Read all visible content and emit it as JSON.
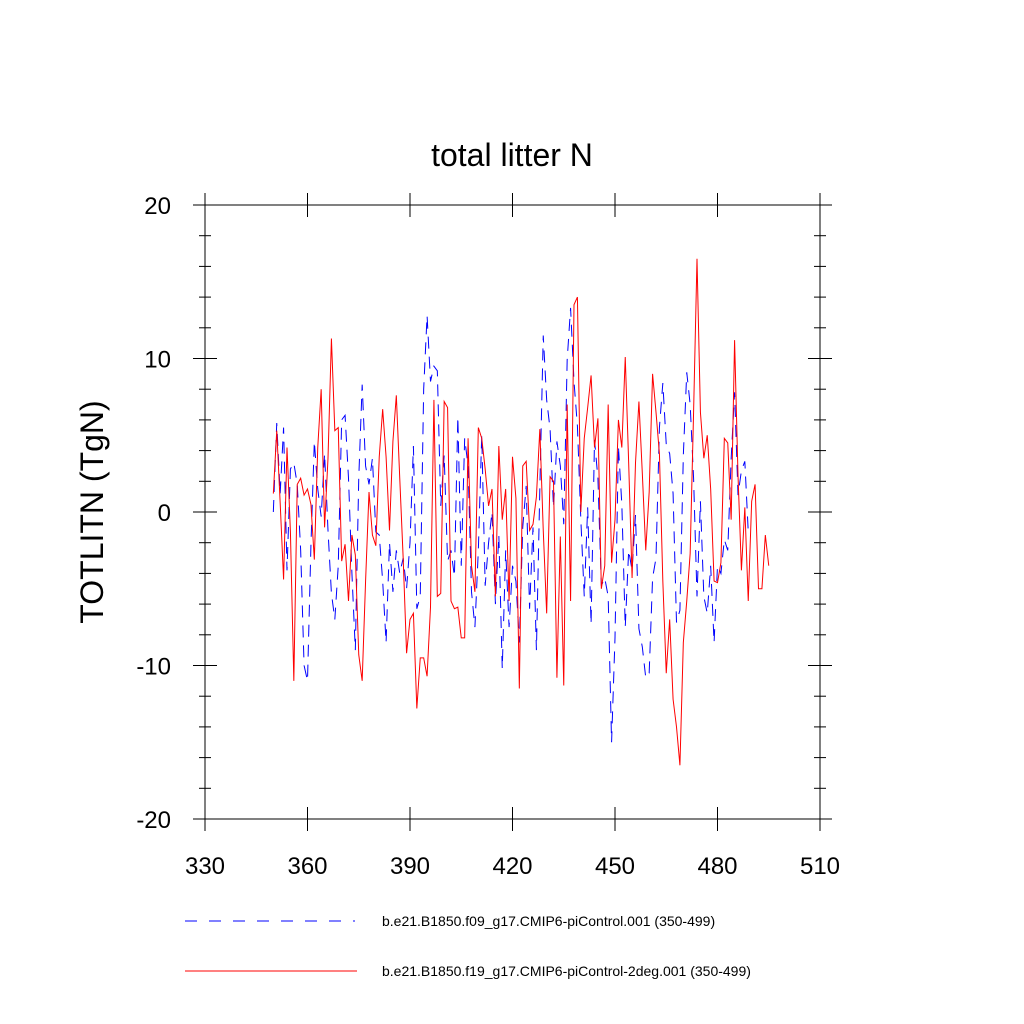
{
  "chart_data": {
    "type": "line",
    "title": "total litter N",
    "xlabel": "",
    "ylabel": "TOTLITN  (TgN)",
    "xlim": [
      330,
      510
    ],
    "ylim": [
      -20,
      20
    ],
    "x_ticks": [
      330,
      360,
      390,
      420,
      450,
      480,
      510
    ],
    "y_ticks": [
      -20,
      -10,
      0,
      10,
      20
    ],
    "x_tick_labels": [
      "330",
      "360",
      "390",
      "420",
      "450",
      "480",
      "510"
    ],
    "y_tick_labels": [
      "-20",
      "-10",
      "0",
      "10",
      "20"
    ],
    "legend_position": "bottom",
    "series": [
      {
        "name": "b.e21.B1850.f09_g17.CMIP6-piControl.001 (350-499)",
        "color": "#0000ff",
        "style": "dashed",
        "x_start": 350,
        "values": [
          0,
          5.8,
          1.2,
          5.5,
          -3.8,
          2.8,
          3.2,
          1.8,
          -2.5,
          -10,
          -11,
          -2.2,
          4.6,
          1.5,
          -0.3,
          3.8,
          -1.2,
          -5.3,
          -7,
          -3.5,
          6,
          6.3,
          2.2,
          -4,
          -9,
          2.2,
          8.3,
          3,
          1.8,
          3.5,
          -1.3,
          -1.5,
          -4.5,
          -8.5,
          -2,
          -5.2,
          -2.5,
          -4,
          -3,
          -5,
          -2,
          4.3,
          -6.3,
          -5.5,
          8,
          12.8,
          8.5,
          9.5,
          9.2,
          0.4,
          3.7,
          -3.2,
          -2.5,
          -4.2,
          6.2,
          -3.5,
          4.8,
          3,
          -5.2,
          -7.5,
          -2.5,
          5,
          -4.8,
          -2,
          0,
          -6,
          -1.5,
          -10.2,
          -2.5,
          -7.5,
          -3.5,
          -4.5,
          -8.5,
          -1,
          1.7,
          -6.3,
          -1,
          -9,
          1.5,
          11.5,
          7.3,
          5.4,
          0.3,
          4.6,
          3,
          -0.8,
          9.9,
          13.3,
          8.5,
          5.6,
          -0.5,
          -5.5,
          0.3,
          -7.3,
          4.7,
          2.2,
          -4.8,
          -4.3,
          -5.5,
          -15,
          -8.2,
          4.3,
          0.5,
          -7.5,
          -2.5,
          -3.8,
          -0.2,
          -7.6,
          -8.8,
          -10.8,
          -10.5,
          -4.3,
          -3,
          5.5,
          8.4,
          4.4,
          3.8,
          1.2,
          -7.2,
          -6.4,
          3.7,
          9.1,
          7,
          2.2,
          -5.5,
          0.7,
          -5.5,
          -6.6,
          -3.5,
          -8.5,
          -3.5,
          -4,
          -1.8,
          -2.5,
          3.5,
          7.8,
          1.1,
          2.7,
          3.3,
          -1.3
        ],
        "x_end": 499
      },
      {
        "name": "b.e21.B1850.f19_g17.CMIP6-piControl-2deg.001 (350-499)",
        "color": "#ff0000",
        "style": "solid",
        "x_start": 350,
        "values": [
          1.2,
          5.3,
          0.6,
          -4.4,
          4.2,
          -1.3,
          -11,
          1.8,
          2.2,
          1.1,
          1.5,
          0.5,
          -3.1,
          4.2,
          8,
          -1,
          3.5,
          11.3,
          5.3,
          5.5,
          -3.2,
          -2.1,
          -5.8,
          -1.5,
          -2.8,
          -9.3,
          -11,
          -4.5,
          1.3,
          -1.5,
          -2.2,
          3.6,
          6.7,
          3.6,
          -1.2,
          4.6,
          7.6,
          2.2,
          -3,
          -9.2,
          -7,
          -6.6,
          -12.8,
          -9.5,
          -9.5,
          -10.7,
          -6.2,
          7.3,
          -5.5,
          -5.3,
          7.2,
          6.8,
          -5.8,
          -6.3,
          -6.2,
          -8.2,
          -8.2,
          4.8,
          -3.5,
          -5.2,
          5.5,
          4.8,
          2.8,
          0.4,
          1.5,
          -5.5,
          4.3,
          -0.5,
          1.5,
          -5.8,
          3.6,
          0.9,
          -11.5,
          3,
          3.3,
          -1.2,
          -0.8,
          1,
          5.4,
          -1.2,
          -6.6,
          2.3,
          2,
          -10.8,
          -1.6,
          -11.3,
          7,
          -5.8,
          13.5,
          14,
          0,
          4.8,
          6.8,
          8.9,
          4.2,
          6.1,
          -5,
          -3.5,
          7,
          -3.3,
          -0.5,
          6,
          4.2,
          10.1,
          3.2,
          -4.3,
          3.2,
          7.2,
          2.5,
          -2.5,
          1.3,
          9,
          6.5,
          3.8,
          -4.5,
          -10.5,
          -7,
          -12.2,
          -14,
          -16.5,
          -8.5,
          -5.8,
          -2.7,
          6.5,
          16.5,
          6.5,
          3.5,
          5,
          1.5,
          -4.5,
          -4.6,
          -3.3,
          4.8,
          4.5,
          -0.5,
          11.2,
          2.4,
          -3.8,
          0.3,
          -5.8,
          0.7,
          1.8,
          -5,
          -5,
          -1.5,
          -3.5
        ],
        "x_end": 499
      }
    ]
  }
}
